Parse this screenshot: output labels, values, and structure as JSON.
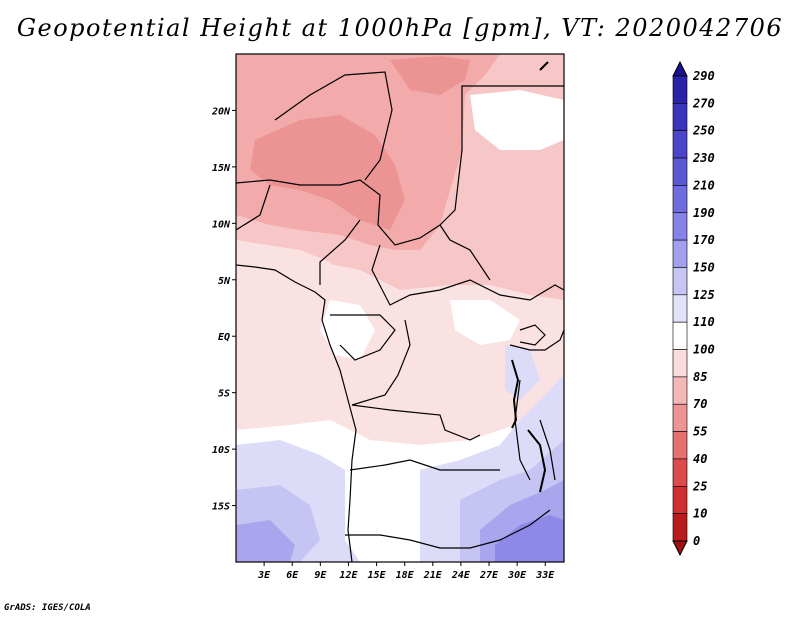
{
  "title": "Geopotential Height at 1000hPa [gpm], VT: 2020042706",
  "credit": "GrADS: IGES/COLA",
  "map": {
    "type": "filled-contour-map",
    "variable": "Geopotential Height",
    "level": "1000hPa",
    "units": "gpm",
    "valid_time": "2020042706",
    "lat_range": [
      -20,
      25
    ],
    "lon_range": [
      0,
      35
    ],
    "lat_ticks": [
      {
        "value": 20,
        "label": "20N"
      },
      {
        "value": 15,
        "label": "15N"
      },
      {
        "value": 10,
        "label": "10N"
      },
      {
        "value": 5,
        "label": "5N"
      },
      {
        "value": 0,
        "label": "EQ"
      },
      {
        "value": -5,
        "label": "5S"
      },
      {
        "value": -10,
        "label": "10S"
      },
      {
        "value": -15,
        "label": "15S"
      }
    ],
    "lon_ticks": [
      {
        "value": 3,
        "label": "3E"
      },
      {
        "value": 6,
        "label": "6E"
      },
      {
        "value": 9,
        "label": "9E"
      },
      {
        "value": 12,
        "label": "12E"
      },
      {
        "value": 15,
        "label": "15E"
      },
      {
        "value": 18,
        "label": "18E"
      },
      {
        "value": 21,
        "label": "21E"
      },
      {
        "value": 24,
        "label": "24E"
      },
      {
        "value": 27,
        "label": "27E"
      },
      {
        "value": 30,
        "label": "30E"
      },
      {
        "value": 33,
        "label": "33E"
      }
    ]
  },
  "colorbar": {
    "levels": [
      "290",
      "270",
      "250",
      "230",
      "210",
      "190",
      "170",
      "150",
      "125",
      "110",
      "100",
      "85",
      "70",
      "55",
      "40",
      "25",
      "10",
      "0"
    ],
    "colors": [
      "#1a118f",
      "#2a22a8",
      "#3a34bb",
      "#4b46c8",
      "#5c58d4",
      "#6f6ce0",
      "#8683e8",
      "#a3a1ef",
      "#c6c5f4",
      "#e2e2fa",
      "#ffffff",
      "#fbdcdc",
      "#f5b6b6",
      "#ee9494",
      "#e67070",
      "#dd4c4c",
      "#cf2e2e",
      "#b91c1c",
      "#9e1010"
    ]
  },
  "colors": {
    "pink_pale": "#fbe2e2",
    "pink_light": "#f7c6c6",
    "pink_mid": "#f2aaaa",
    "pink_deep": "#ec9494",
    "blue_pale": "#dcdcf8",
    "blue_light": "#c5c4f3",
    "blue_mid": "#a9a6ee",
    "blue_deep": "#8e89e6",
    "white": "#ffffff",
    "border": "#000000"
  }
}
